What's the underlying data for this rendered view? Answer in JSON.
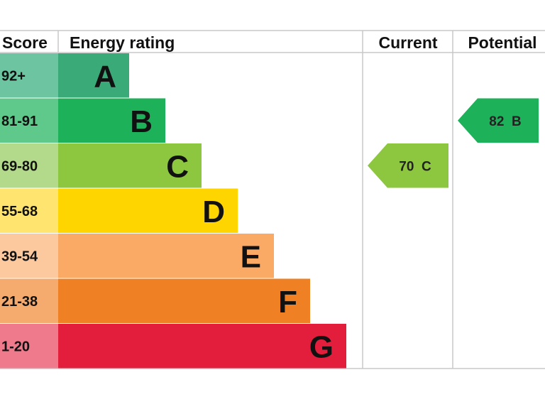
{
  "chart_data": {
    "type": "bar",
    "headers": {
      "score": "Score",
      "rating": "Energy rating",
      "current": "Current",
      "potential": "Potential"
    },
    "bands": [
      {
        "score": "92+",
        "letter": "A",
        "color": "#3aab78",
        "score_color": "#6cc4a0"
      },
      {
        "score": "81-91",
        "letter": "B",
        "color": "#1db25a",
        "score_color": "#5ec98a"
      },
      {
        "score": "69-80",
        "letter": "C",
        "color": "#8dc63f",
        "score_color": "#b3d98a"
      },
      {
        "score": "55-68",
        "letter": "D",
        "color": "#ffd500",
        "score_color": "#ffe570"
      },
      {
        "score": "39-54",
        "letter": "E",
        "color": "#fbaa65",
        "score_color": "#fcc89e"
      },
      {
        "score": "21-38",
        "letter": "F",
        "color": "#ef8023",
        "score_color": "#f5aa6e"
      },
      {
        "score": "1-20",
        "letter": "G",
        "color": "#e31d3c",
        "score_color": "#ef7a8c"
      }
    ],
    "current": {
      "value": 70,
      "band": "C",
      "label": "70  C",
      "color": "#8dc63f"
    },
    "potential": {
      "value": 82,
      "band": "B",
      "label": "82  B",
      "color": "#1db25a"
    }
  }
}
